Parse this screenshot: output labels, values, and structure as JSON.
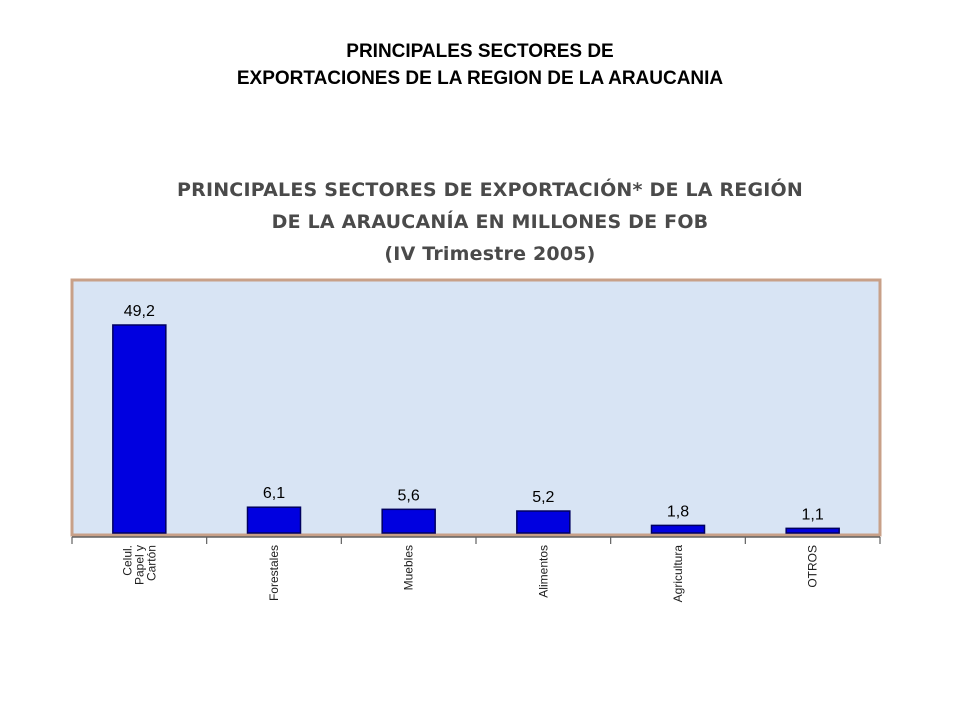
{
  "slide": {
    "title_line1": "PRINCIPALES SECTORES DE",
    "title_line2": "EXPORTACIONES DE LA REGION DE LA ARAUCANIA"
  },
  "chart_data": {
    "type": "bar",
    "title_lines": [
      "PRINCIPALES SECTORES DE EXPORTACIÓN* DE LA REGIÓN",
      "DE LA ARAUCANÍA EN MILLONES DE FOB",
      "(IV Trimestre 2005)"
    ],
    "categories": [
      [
        "Celul.",
        "Papel y",
        "Cartón"
      ],
      [
        "Forestales"
      ],
      [
        "Muebles"
      ],
      [
        "Alimentos"
      ],
      [
        "Agricultura"
      ],
      [
        "OTROS"
      ]
    ],
    "values": [
      49.2,
      6.1,
      5.6,
      5.2,
      1.8,
      1.1
    ],
    "value_labels": [
      "49,2",
      "6,1",
      "5,6",
      "5,2",
      "1,8",
      "1,1"
    ],
    "ylim": [
      0,
      52
    ],
    "grid": false,
    "legend": "none",
    "colors": {
      "bar_fill": "#0000e0",
      "bar_stroke": "#000060",
      "plot_background": "#d8e4f4",
      "plot_border": "#c8a088",
      "axis": "#606060"
    }
  }
}
